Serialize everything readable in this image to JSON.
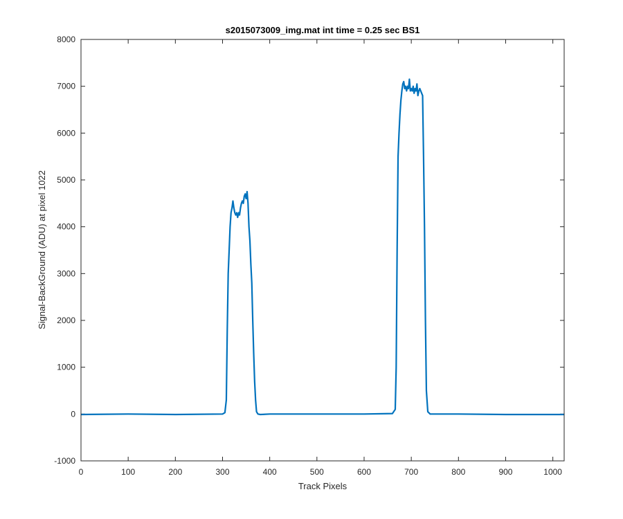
{
  "chart_data": {
    "type": "line",
    "title": "s2015073009_img.mat int time = 0.25 sec   BS1",
    "xlabel": "Track Pixels",
    "ylabel": "Signal-BackGround (ADU) at pixel 1022",
    "xlim": [
      0,
      1024
    ],
    "ylim": [
      -1000,
      8000
    ],
    "xticks": [
      0,
      100,
      200,
      300,
      400,
      500,
      600,
      700,
      800,
      900,
      1000
    ],
    "yticks": [
      -1000,
      0,
      1000,
      2000,
      3000,
      4000,
      5000,
      6000,
      7000,
      8000
    ],
    "grid": false,
    "line_color": "#0072BD",
    "series": [
      {
        "x": [
          0,
          100,
          200,
          300,
          305,
          308,
          310,
          312,
          314,
          316,
          318,
          320,
          322,
          324,
          326,
          328,
          330,
          332,
          334,
          336,
          338,
          340,
          342,
          344,
          346,
          348,
          350,
          352,
          354,
          356,
          358,
          360,
          362,
          364,
          366,
          368,
          370,
          372,
          375,
          380,
          400,
          500,
          600,
          660,
          666,
          668,
          670,
          672,
          674,
          676,
          678,
          680,
          682,
          684,
          686,
          688,
          690,
          692,
          694,
          696,
          698,
          700,
          702,
          704,
          706,
          708,
          710,
          712,
          714,
          716,
          718,
          720,
          722,
          724,
          726,
          728,
          730,
          732,
          735,
          740,
          800,
          900,
          1000,
          1024
        ],
        "y": [
          -10,
          0,
          -10,
          0,
          30,
          300,
          1800,
          3000,
          3500,
          4000,
          4300,
          4400,
          4550,
          4400,
          4300,
          4250,
          4300,
          4200,
          4300,
          4250,
          4400,
          4500,
          4550,
          4500,
          4650,
          4700,
          4600,
          4750,
          4500,
          4000,
          3700,
          3200,
          2800,
          2000,
          1300,
          700,
          300,
          50,
          0,
          -10,
          0,
          0,
          0,
          10,
          100,
          1000,
          3500,
          5500,
          6000,
          6400,
          6700,
          6900,
          7050,
          7100,
          6950,
          7000,
          6900,
          7000,
          6950,
          7150,
          6900,
          6950,
          6900,
          7000,
          6850,
          6950,
          6900,
          7050,
          6800,
          6900,
          6950,
          6900,
          6850,
          6800,
          5500,
          4000,
          2000,
          500,
          50,
          0,
          0,
          -10,
          -10,
          -10
        ]
      }
    ]
  }
}
